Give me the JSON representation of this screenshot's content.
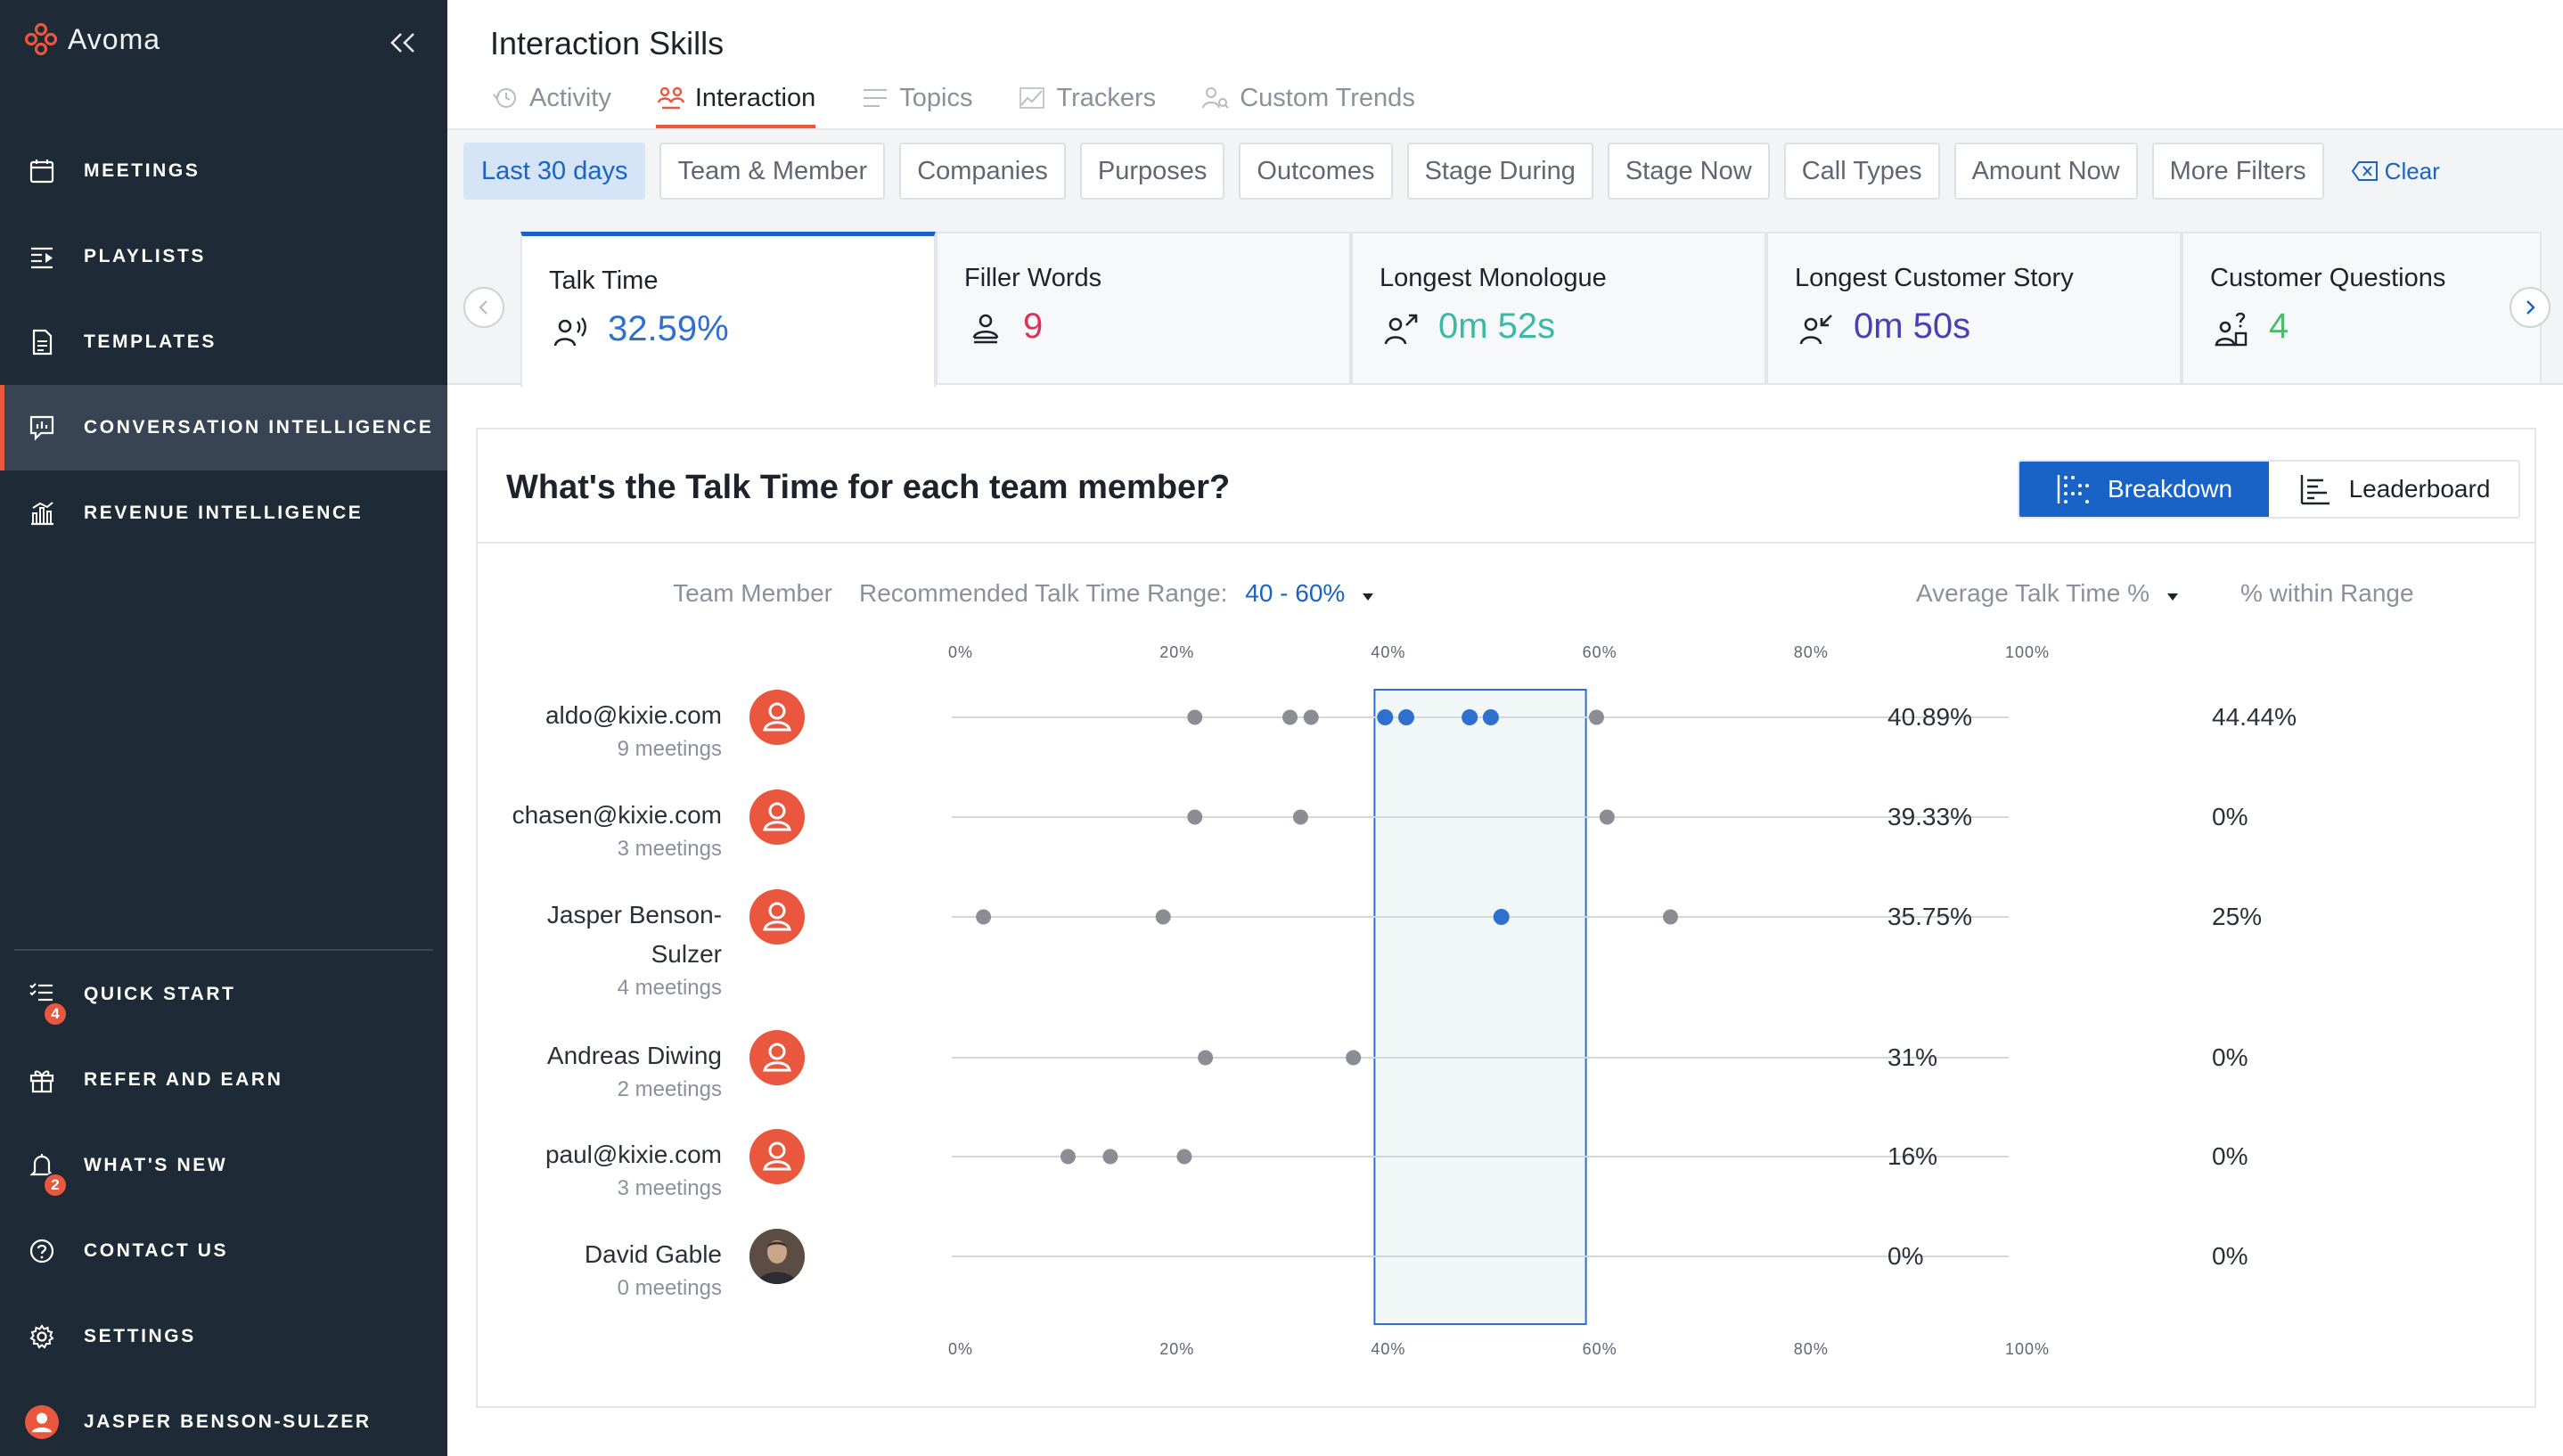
{
  "app": {
    "brand": "Avoma",
    "colors": {
      "sidebar_bg": "#1f2a37",
      "accent": "#e9573f",
      "primary": "#1a63c6"
    }
  },
  "sidebar": {
    "items": [
      {
        "label": "MEETINGS",
        "icon": "calendar-icon"
      },
      {
        "label": "PLAYLISTS",
        "icon": "playlist-icon"
      },
      {
        "label": "TEMPLATES",
        "icon": "document-icon"
      },
      {
        "label": "CONVERSATION INTELLIGENCE",
        "icon": "chat-chart-icon",
        "active": true
      },
      {
        "label": "REVENUE INTELLIGENCE",
        "icon": "bar-chart-icon"
      }
    ],
    "bottom_items": [
      {
        "label": "QUICK START",
        "icon": "checklist-icon",
        "badge": "4"
      },
      {
        "label": "REFER AND EARN",
        "icon": "gift-icon"
      },
      {
        "label": "WHAT'S NEW",
        "icon": "bell-icon",
        "badge": "2"
      },
      {
        "label": "CONTACT US",
        "icon": "help-circle-icon"
      },
      {
        "label": "SETTINGS",
        "icon": "gear-icon"
      },
      {
        "label": "JASPER BENSON-SULZER",
        "icon": "user-avatar"
      }
    ]
  },
  "header": {
    "title": "Interaction Skills",
    "tabs": [
      {
        "label": "Activity",
        "icon": "history-icon"
      },
      {
        "label": "Interaction",
        "icon": "people-icon",
        "active": true
      },
      {
        "label": "Topics",
        "icon": "list-icon"
      },
      {
        "label": "Trackers",
        "icon": "tracker-icon"
      },
      {
        "label": "Custom Trends",
        "icon": "user-search-icon"
      }
    ]
  },
  "filters": {
    "chips": [
      {
        "label": "Last 30 days",
        "active": true
      },
      {
        "label": "Team & Member"
      },
      {
        "label": "Companies"
      },
      {
        "label": "Purposes"
      },
      {
        "label": "Outcomes"
      },
      {
        "label": "Stage During"
      },
      {
        "label": "Stage Now"
      },
      {
        "label": "Call Types"
      },
      {
        "label": "Amount Now"
      },
      {
        "label": "More Filters"
      }
    ],
    "clear_label": "Clear"
  },
  "metrics": [
    {
      "title": "Talk Time",
      "value": "32.59%",
      "color": "#2f6fd0",
      "icon": "talk-icon",
      "active": true
    },
    {
      "title": "Filler Words",
      "value": "9",
      "color": "#d9345a",
      "icon": "filler-icon"
    },
    {
      "title": "Longest Monologue",
      "value": "0m 52s",
      "color": "#3cb8a8",
      "icon": "monologue-icon"
    },
    {
      "title": "Longest Customer Story",
      "value": "0m 50s",
      "color": "#4a3fb0",
      "icon": "story-icon"
    },
    {
      "title": "Customer Questions",
      "value": "4",
      "color": "#4cbb6c",
      "icon": "question-icon"
    }
  ],
  "panel": {
    "title": "What's the Talk Time for each team member?",
    "toggle": {
      "breakdown": "Breakdown",
      "leaderboard": "Leaderboard"
    },
    "columns": {
      "member": "Team Member",
      "range_label": "Recommended Talk Time Range:",
      "range_value": "40 - 60%",
      "avg": "Average Talk Time %",
      "within": "% within Range"
    }
  },
  "chart_data": {
    "type": "scatter",
    "xlabel": "",
    "ylabel": "",
    "xlim": [
      0,
      100
    ],
    "x_ticks": [
      "0%",
      "20%",
      "40%",
      "60%",
      "80%",
      "100%"
    ],
    "recommended_range": [
      40,
      60
    ],
    "in_range_color": "#2f6fd0",
    "out_range_color": "#8a8d93",
    "rows": [
      {
        "name": "aldo@kixie.com",
        "meetings": "9 meetings",
        "avatar": "initial",
        "avg": "40.89%",
        "within": "44.44%",
        "points": [
          23,
          32,
          34,
          41,
          43,
          49,
          51,
          61
        ]
      },
      {
        "name": "chasen@kixie.com",
        "meetings": "3 meetings",
        "avatar": "initial",
        "avg": "39.33%",
        "within": "0%",
        "points": [
          23,
          33,
          62
        ]
      },
      {
        "name": "Jasper Benson-Sulzer",
        "name_lines": [
          "Jasper Benson-",
          "Sulzer"
        ],
        "meetings": "4 meetings",
        "avatar": "initial",
        "avg": "35.75%",
        "within": "25%",
        "points": [
          3,
          20,
          52,
          68
        ]
      },
      {
        "name": "Andreas Diwing",
        "meetings": "2 meetings",
        "avatar": "initial",
        "avg": "31%",
        "within": "0%",
        "points": [
          24,
          38
        ]
      },
      {
        "name": "paul@kixie.com",
        "meetings": "3 meetings",
        "avatar": "initial",
        "avg": "16%",
        "within": "0%",
        "points": [
          11,
          15,
          22
        ]
      },
      {
        "name": "David Gable",
        "meetings": "0 meetings",
        "avatar": "photo",
        "avg": "0%",
        "within": "0%",
        "points": []
      }
    ]
  }
}
